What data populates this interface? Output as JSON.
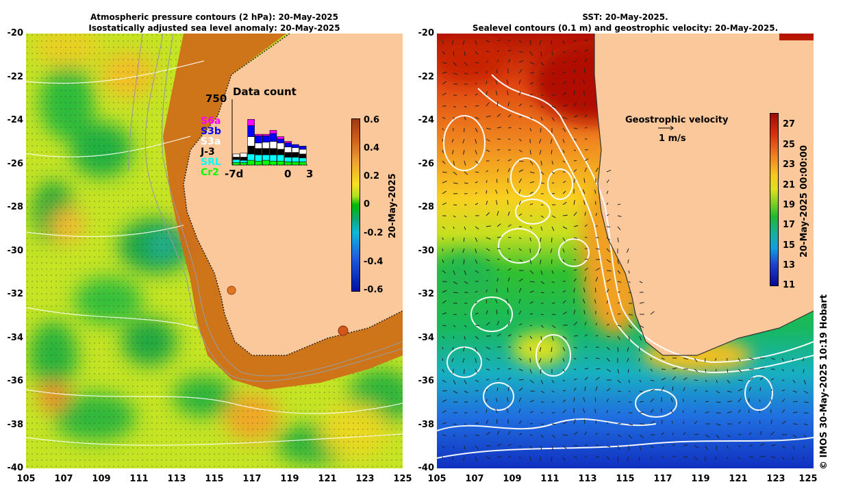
{
  "left_panel": {
    "title_line1": "Atmospheric pressure contours (2 hPa): 20-May-2025",
    "title_line2": "Isostatically adjusted sea level anomaly: 20-May-2025",
    "colorbar": {
      "ticks": [
        "0.6",
        "0.4",
        "0.2",
        "0",
        "-0.2",
        "-0.4",
        "-0.6"
      ],
      "label": "20-May-2025",
      "range": [
        -0.6,
        0.6
      ]
    },
    "data_count": {
      "title": "Data count",
      "ymax_label": "750",
      "x_labels": [
        "-7d",
        "0",
        "3"
      ],
      "legend": [
        {
          "name": "S6a",
          "color": "#ff00ff"
        },
        {
          "name": "S3b",
          "color": "#0000ff"
        },
        {
          "name": "S3a",
          "color": "#ffffff"
        },
        {
          "name": "J-3",
          "color": "#000000"
        },
        {
          "name": "SRL",
          "color": "#00ffff"
        },
        {
          "name": "Cr2",
          "color": "#00ff00"
        }
      ]
    }
  },
  "right_panel": {
    "title_line1": "SST: 20-May-2025.",
    "title_line2": "Sealevel contours (0.1 m) and geostrophic velocity: 20-May-2025.",
    "colorbar": {
      "ticks": [
        "27",
        "25",
        "23",
        "21",
        "19",
        "17",
        "15",
        "13",
        "11"
      ],
      "label": "20-May-2025 00:00:00",
      "range": [
        11,
        28
      ]
    },
    "geostrophic_label": "Geostrophic velocity",
    "scale_label": "1 m/s"
  },
  "axes": {
    "y_ticks": [
      "-20",
      "-22",
      "-24",
      "-26",
      "-28",
      "-30",
      "-32",
      "-34",
      "-36",
      "-38",
      "-40"
    ],
    "x_ticks": [
      "105",
      "107",
      "109",
      "111",
      "113",
      "115",
      "117",
      "119",
      "121",
      "123",
      "125"
    ]
  },
  "credit": "© IMOS 30-May-2025 10:19 Hobart",
  "colors": {
    "land": "#fac89a",
    "sla_background": "#c8e620",
    "sst_warm": "#b41400"
  }
}
